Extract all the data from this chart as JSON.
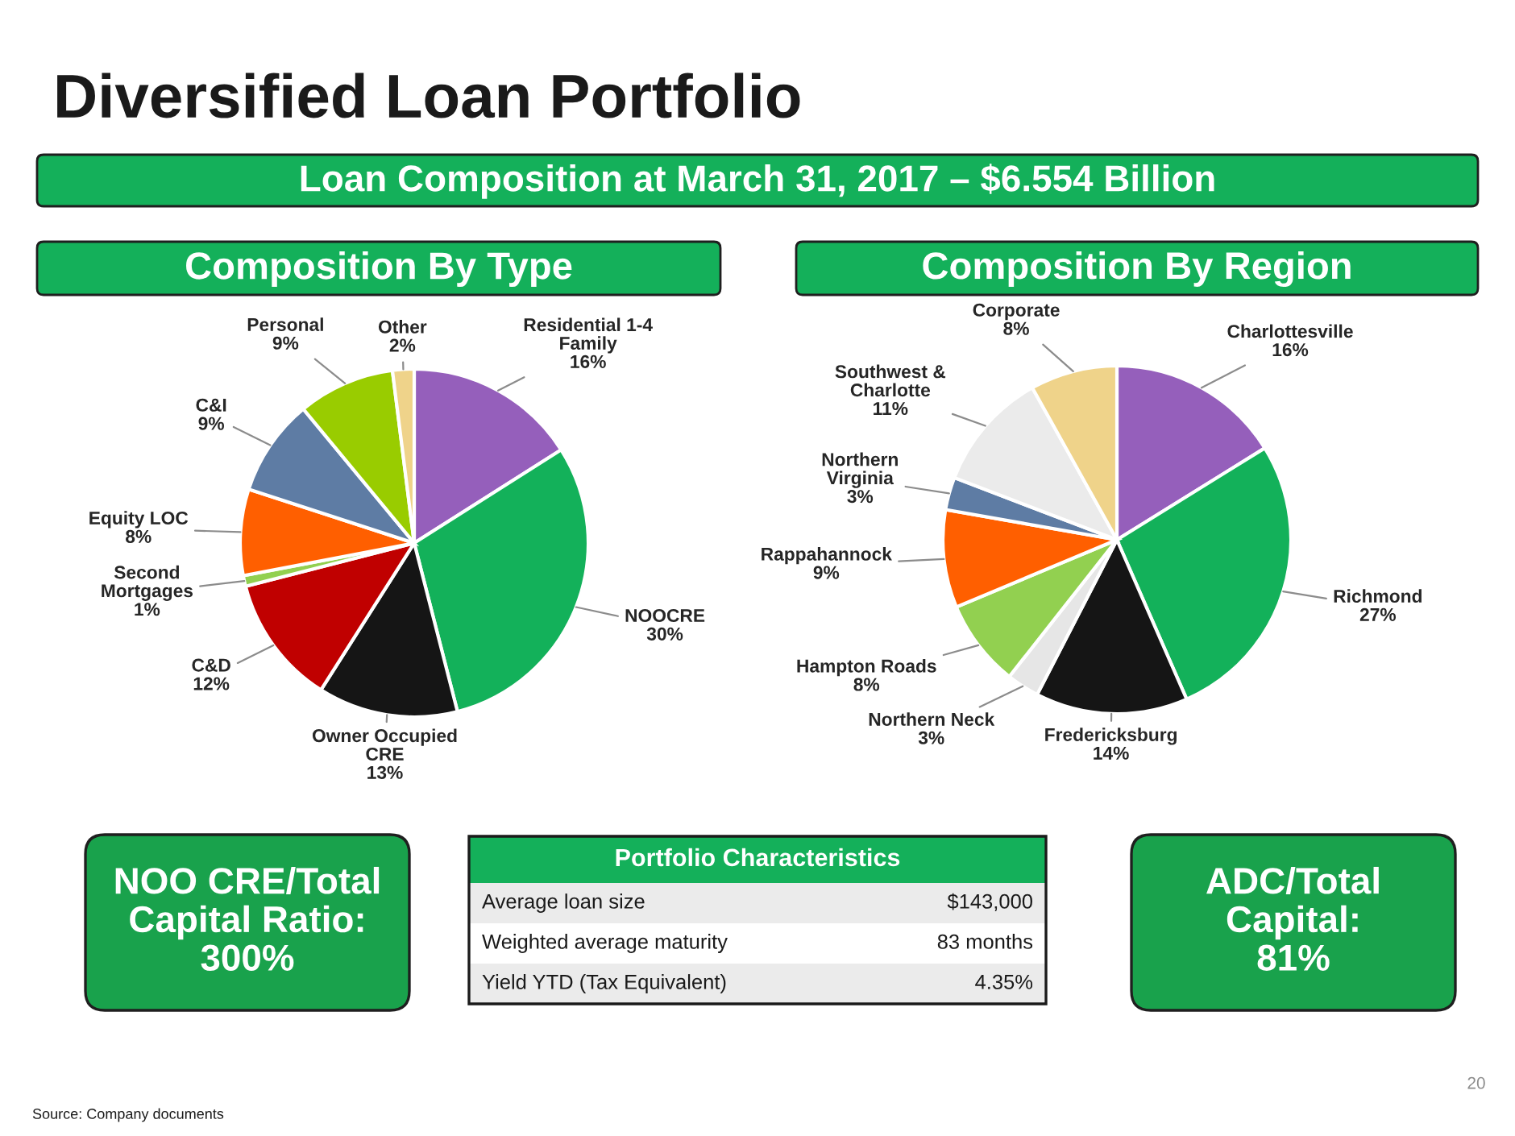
{
  "chart_data": [
    {
      "type": "other",
      "title": "Diversified Loan Portfolio",
      "subtitle": "Loan Composition at March 31, 2017 – $6.554 Billion"
    },
    {
      "type": "pie",
      "title": "Composition By Type",
      "categories": [
        "Residential 1-4 Family",
        "NOOCRE",
        "Owner Occupied CRE",
        "C&D",
        "Second Mortgages",
        "Equity LOC",
        "C&I",
        "Personal",
        "Other"
      ],
      "values": [
        16,
        30,
        13,
        12,
        1,
        8,
        9,
        9,
        2
      ],
      "value_labels": [
        "16%",
        "30%",
        "13%",
        "12%",
        "1%",
        "8%",
        "9%",
        "9%",
        "2%"
      ],
      "colors": [
        "#955fbb",
        "#13b15a",
        "#151515",
        "#c00000",
        "#92d050",
        "#ff5f00",
        "#5e7ca4",
        "#99cc00",
        "#efd38a"
      ]
    },
    {
      "type": "pie",
      "title": "Composition By Region",
      "categories": [
        "Charlottesville",
        "Richmond",
        "Fredericksburg",
        "Northern Neck",
        "Hampton Roads",
        "Rappahannock",
        "Northern Virginia",
        "Southwest & Charlotte",
        "Corporate"
      ],
      "values": [
        16,
        27,
        14,
        3,
        8,
        9,
        3,
        11,
        8
      ],
      "value_labels": [
        "16%",
        "27%",
        "14%",
        "3%",
        "8%",
        "9%",
        "3%",
        "11%",
        "8%"
      ],
      "colors": [
        "#955fbb",
        "#13b15a",
        "#151515",
        "#e6e6e6",
        "#92d050",
        "#ff5f00",
        "#5e7ca4",
        "#ebebeb",
        "#efd38a"
      ]
    },
    {
      "type": "other",
      "annotations": [
        "NOO CRE/Total Capital Ratio: 300%",
        "Portfolio Characteristics",
        "Average loan size",
        "$143,000",
        "Weighted average maturity",
        "83 months",
        "Yield YTD (Tax Equivalent)",
        "4.35%",
        "ADC/Total Capital: 81%",
        "Source: Company documents",
        "20"
      ]
    }
  ]
}
